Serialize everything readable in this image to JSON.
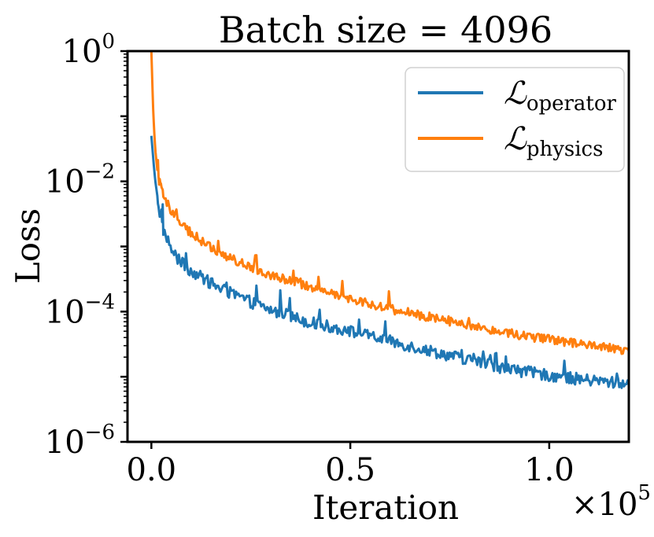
{
  "chart_data": {
    "type": "line",
    "title": "Batch size = 4096",
    "xlabel": "Iteration",
    "ylabel": "Loss",
    "x_scale_label": "×10",
    "x_scale_exponent": "5",
    "xlim": [
      -6000,
      120000
    ],
    "ylim_log10": [
      -6,
      0
    ],
    "x_ticks": [
      {
        "value": 0,
        "label": "0.0"
      },
      {
        "value": 50000,
        "label": "0.5"
      },
      {
        "value": 100000,
        "label": "1.0"
      }
    ],
    "y_ticks": [
      {
        "exponent": 0,
        "base": "10",
        "sup": "0"
      },
      {
        "exponent": -2,
        "base": "10",
        "sup": "−2"
      },
      {
        "exponent": -4,
        "base": "10",
        "sup": "−4"
      },
      {
        "exponent": -6,
        "base": "10",
        "sup": "−6"
      }
    ],
    "legend_position": "upper-right",
    "series": [
      {
        "name": "operator",
        "legend_main": "ℒ",
        "legend_sub": "operator",
        "color": "#1f77b4",
        "points": [
          [
            0,
            0.05
          ],
          [
            300,
            0.03
          ],
          [
            600,
            0.018
          ],
          [
            1000,
            0.01
          ],
          [
            1500,
            0.006
          ],
          [
            2000,
            0.0035
          ],
          [
            2500,
            0.0025
          ],
          [
            3000,
            0.0018
          ],
          [
            4000,
            0.0013
          ],
          [
            5000,
            0.0009
          ],
          [
            7000,
            0.0006
          ],
          [
            10000,
            0.00042
          ],
          [
            15000,
            0.00027
          ],
          [
            20000,
            0.00019
          ],
          [
            25000,
            0.00014
          ],
          [
            30000,
            0.000105
          ],
          [
            40000,
            6.8e-05
          ],
          [
            50000,
            5e-05
          ],
          [
            60000,
            3.5e-05
          ],
          [
            70000,
            2.5e-05
          ],
          [
            80000,
            1.8e-05
          ],
          [
            90000,
            1.3e-05
          ],
          [
            100000,
            1.05e-05
          ],
          [
            110000,
            8.8e-06
          ],
          [
            120000,
            7.8e-06
          ]
        ],
        "noise_amplitude_log10": 0.18
      },
      {
        "name": "physics",
        "legend_main": "ℒ",
        "legend_sub": "physics",
        "color": "#ff7f0e",
        "points": [
          [
            0,
            1.0
          ],
          [
            200,
            0.4
          ],
          [
            400,
            0.15
          ],
          [
            700,
            0.06
          ],
          [
            1000,
            0.03
          ],
          [
            1500,
            0.015
          ],
          [
            2000,
            0.0095
          ],
          [
            2500,
            0.0075
          ],
          [
            3000,
            0.006
          ],
          [
            4000,
            0.0045
          ],
          [
            5000,
            0.0035
          ],
          [
            7000,
            0.0024
          ],
          [
            10000,
            0.0016
          ],
          [
            15000,
            0.00095
          ],
          [
            20000,
            0.00065
          ],
          [
            25000,
            0.00048
          ],
          [
            30000,
            0.00037
          ],
          [
            40000,
            0.00024
          ],
          [
            50000,
            0.00016
          ],
          [
            60000,
            0.00011
          ],
          [
            70000,
            8.2e-05
          ],
          [
            80000,
            6.2e-05
          ],
          [
            90000,
            4.7e-05
          ],
          [
            100000,
            3.7e-05
          ],
          [
            110000,
            3e-05
          ],
          [
            120000,
            2.5e-05
          ]
        ],
        "noise_amplitude_log10": 0.14
      }
    ]
  }
}
